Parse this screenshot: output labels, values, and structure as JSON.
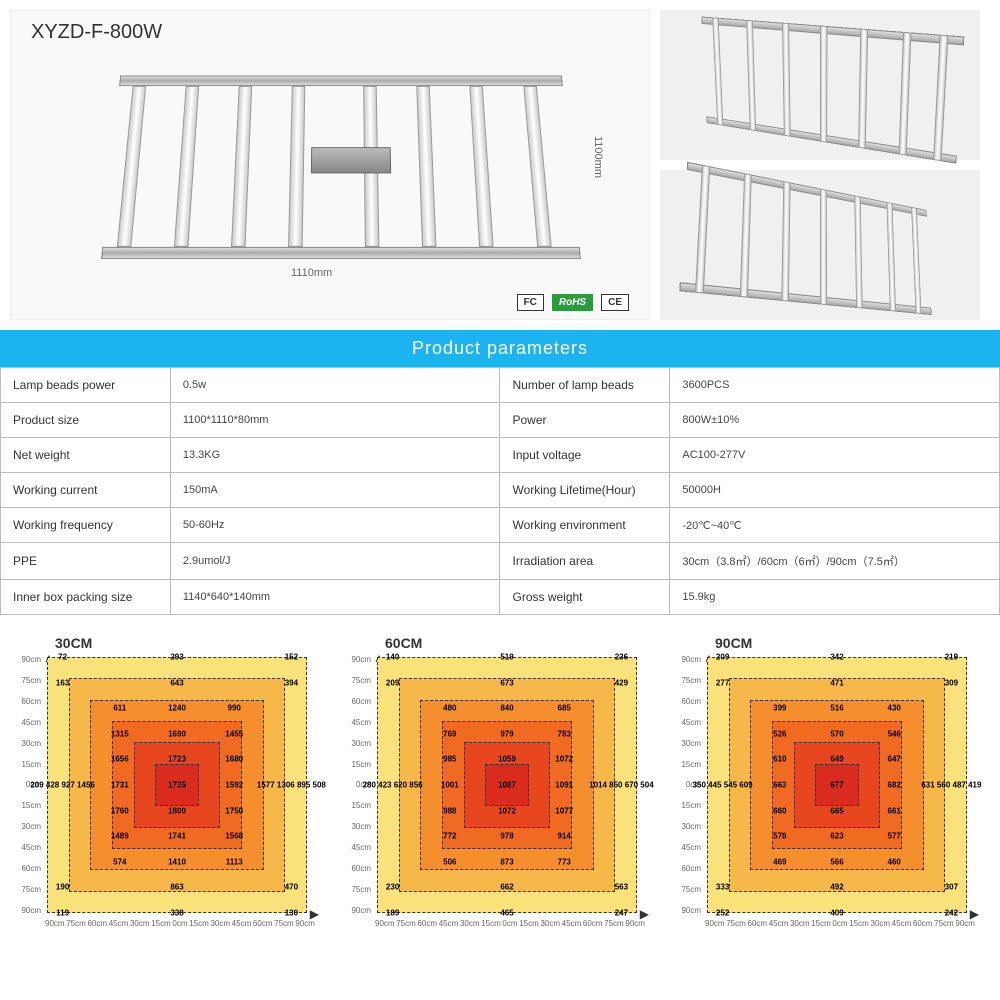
{
  "product": {
    "model": "XYZD-F-800W",
    "width_label": "1110mm",
    "height_label": "1100mm",
    "certs": [
      "FC",
      "RoHS",
      "CE"
    ]
  },
  "params": {
    "header": "Product parameters",
    "rows": [
      {
        "l1": "Lamp beads power",
        "v1": "0.5w",
        "l2": "Number of lamp beads",
        "v2": "3600PCS"
      },
      {
        "l1": "Product size",
        "v1": "1100*1110*80mm",
        "l2": "Power",
        "v2": "800W±10%"
      },
      {
        "l1": "Net weight",
        "v1": "13.3KG",
        "l2": "Input voltage",
        "v2": "AC100-277V"
      },
      {
        "l1": "Working current",
        "v1": "150mA",
        "l2": "Working Lifetime(Hour)",
        "v2": "50000H"
      },
      {
        "l1": "Working frequency",
        "v1": "50-60Hz",
        "l2": "Working environment",
        "v2": "-20℃~40℃"
      },
      {
        "l1": "PPE",
        "v1": "2.9umol/J",
        "l2": "Irradiation area",
        "v2": "30cm（3.8㎡）/60cm（6㎡）/90cm（7.5㎡）"
      },
      {
        "l1": "Inner box packing size",
        "v1": "1140*640*140mm",
        "l2": "Gross weight",
        "v2": "15.9kg"
      }
    ]
  },
  "heatmaps": {
    "axis_ticks": [
      "90cm",
      "75cm",
      "60cm",
      "45cm",
      "30cm",
      "15cm",
      "0cm",
      "15cm",
      "30cm",
      "45cm",
      "60cm",
      "75cm",
      "90cm"
    ],
    "ring_colors": [
      "#f9e27a",
      "#f7b84a",
      "#f58f2e",
      "#f06a22",
      "#e8471e",
      "#d92b1e"
    ],
    "charts": [
      {
        "title": "30CM",
        "rows": [
          [
            "72",
            "",
            "293",
            "",
            "152"
          ],
          [
            "163",
            "",
            "643",
            "",
            "394"
          ],
          [
            "",
            "611",
            "1240",
            "990",
            ""
          ],
          [
            "",
            "1315",
            "1690",
            "1455",
            ""
          ],
          [
            "",
            "1656",
            "1723",
            "1680",
            ""
          ],
          [
            "209 428 927 1456",
            "1731",
            "1735",
            "1592",
            "1577 1306 895 508"
          ],
          [
            "",
            "1760",
            "1800",
            "1750",
            ""
          ],
          [
            "",
            "1489",
            "1741",
            "1568",
            ""
          ],
          [
            "",
            "574",
            "1410",
            "1113",
            ""
          ],
          [
            "190",
            "",
            "863",
            "",
            "470"
          ],
          [
            "119",
            "",
            "338",
            "",
            "130"
          ]
        ]
      },
      {
        "title": "60CM",
        "rows": [
          [
            "140",
            "",
            "519",
            "",
            "236"
          ],
          [
            "209",
            "",
            "673",
            "",
            "429"
          ],
          [
            "",
            "480",
            "840",
            "685",
            ""
          ],
          [
            "",
            "769",
            "979",
            "783",
            ""
          ],
          [
            "",
            "985",
            "1059",
            "1072",
            ""
          ],
          [
            "280 423 620 856",
            "1001",
            "1087",
            "1091",
            "1014 850 670 504"
          ],
          [
            "",
            "988",
            "1072",
            "1077",
            ""
          ],
          [
            "",
            "772",
            "978",
            "914",
            ""
          ],
          [
            "",
            "506",
            "873",
            "773",
            ""
          ],
          [
            "230",
            "",
            "662",
            "",
            "563"
          ],
          [
            "189",
            "",
            "465",
            "",
            "247"
          ]
        ]
      },
      {
        "title": "90CM",
        "rows": [
          [
            "209",
            "",
            "342",
            "",
            "219"
          ],
          [
            "277",
            "",
            "471",
            "",
            "309"
          ],
          [
            "",
            "399",
            "516",
            "430",
            ""
          ],
          [
            "",
            "526",
            "570",
            "546",
            ""
          ],
          [
            "",
            "610",
            "649",
            "647",
            ""
          ],
          [
            "350 445 545 609",
            "663",
            "677",
            "682",
            "631 560 487 419"
          ],
          [
            "",
            "660",
            "665",
            "661",
            ""
          ],
          [
            "",
            "578",
            "623",
            "577",
            ""
          ],
          [
            "",
            "469",
            "566",
            "460",
            ""
          ],
          [
            "333",
            "",
            "492",
            "",
            "307"
          ],
          [
            "252",
            "",
            "409",
            "",
            "242"
          ]
        ]
      }
    ]
  }
}
